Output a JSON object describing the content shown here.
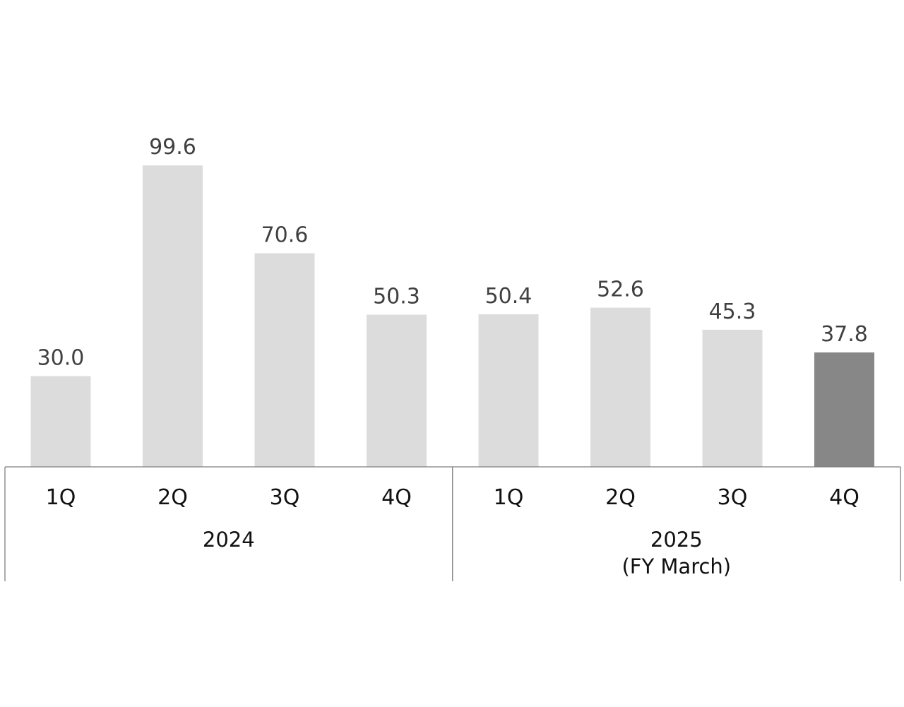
{
  "chart_data": {
    "type": "bar",
    "categories": [
      "1Q",
      "2Q",
      "3Q",
      "4Q",
      "1Q",
      "2Q",
      "3Q",
      "4Q"
    ],
    "values": [
      30.0,
      99.6,
      70.6,
      50.3,
      50.4,
      52.6,
      45.3,
      37.8
    ],
    "value_labels": [
      "30.0",
      "99.6",
      "70.6",
      "50.3",
      "50.4",
      "52.6",
      "45.3",
      "37.8"
    ],
    "groups": [
      {
        "lines": [
          "2024"
        ],
        "count": 4
      },
      {
        "lines": [
          "2025",
          "(FY March)"
        ],
        "count": 4
      }
    ],
    "colors": {
      "bar": "#dcdcdc",
      "highlight_bar": "#878787",
      "axis": "#7f7f7f"
    },
    "highlight_index": 7,
    "title": "",
    "xlabel": "",
    "ylabel": "",
    "ylim": [
      0,
      100
    ],
    "grid": false,
    "legend": "none"
  }
}
